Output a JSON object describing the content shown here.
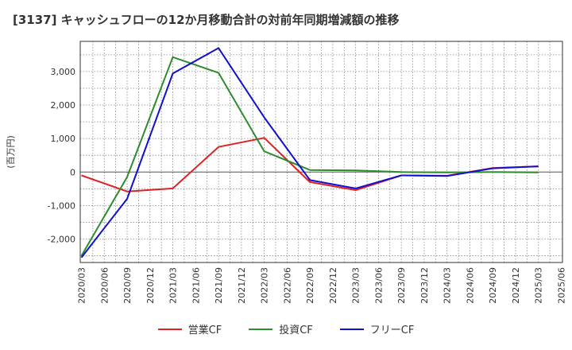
{
  "chart_data": {
    "type": "line",
    "title": "[3137]  キャッシュフローの12か月移動合計の対前年同期増減額の推移",
    "ylabel": "(百万円)",
    "xlabel": "",
    "ylim": [
      -2700,
      3900
    ],
    "yticks": [
      3000,
      2000,
      1000,
      0,
      -1000,
      -2000
    ],
    "ytick_labels": [
      "3,000",
      "2,000",
      "1,000",
      "0",
      "-1,000",
      "-2,000"
    ],
    "categories": [
      "2020/03",
      "2020/06",
      "2020/09",
      "2020/12",
      "2021/03",
      "2021/06",
      "2021/09",
      "2021/12",
      "2022/03",
      "2022/06",
      "2022/09",
      "2022/12",
      "2023/03",
      "2023/06",
      "2023/09",
      "2023/12",
      "2024/03",
      "2024/06",
      "2024/09",
      "2024/12",
      "2025/03",
      "2025/06"
    ],
    "grid": true,
    "legend_position": "bottom",
    "series": [
      {
        "name": "営業CF",
        "color": "#dd2222",
        "values": [
          -100,
          null,
          -580,
          null,
          -490,
          null,
          750,
          null,
          1020,
          null,
          -300,
          null,
          -540,
          null,
          -100,
          null,
          -110,
          null,
          120,
          null,
          170,
          null
        ]
      },
      {
        "name": "投資CF",
        "color": "#2e8b2e",
        "values": [
          -2500,
          null,
          -150,
          null,
          3430,
          null,
          2960,
          null,
          620,
          null,
          60,
          null,
          50,
          null,
          0,
          null,
          -10,
          null,
          0,
          null,
          -10,
          null
        ]
      },
      {
        "name": "フリーCF",
        "color": "#1111cc",
        "values": [
          -2550,
          null,
          -800,
          null,
          2940,
          null,
          3700,
          null,
          1630,
          null,
          -240,
          null,
          -490,
          null,
          -100,
          null,
          -120,
          null,
          110,
          null,
          170,
          null
        ]
      }
    ]
  }
}
